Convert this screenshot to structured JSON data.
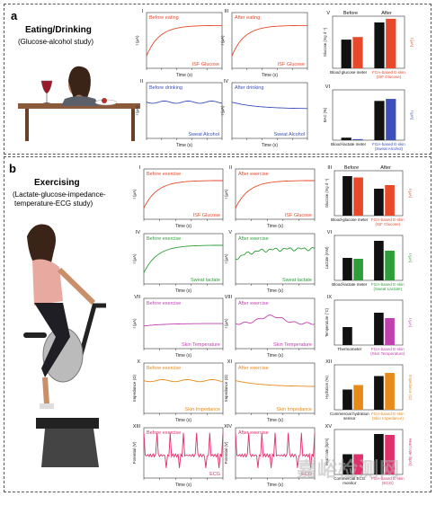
{
  "panel_a": {
    "letter": "a",
    "title": "Eating/Drinking",
    "subtitle": "(Glucose-alcohol study)",
    "plots": [
      {
        "num": "I",
        "note": "Before eating",
        "legend": "ISF Glucose",
        "color": "#e8492b",
        "ylabel": "I (μA)",
        "xlabel": "Time (s)"
      },
      {
        "num": "III",
        "note": "After eating",
        "legend": "ISF Glucose",
        "color": "#e8492b",
        "ylabel": "I (μA)",
        "xlabel": "Time (s)"
      },
      {
        "num": "II",
        "note": "Before drinking",
        "legend": "Sweat Alcohol",
        "color": "#3a4fb8",
        "ylabel": "I (μA)",
        "xlabel": "Time (s)"
      },
      {
        "num": "IV",
        "note": "After drinking",
        "legend": "Sweat Alcohol",
        "color": "#3a4fb8",
        "ylabel": "I (μA)",
        "xlabel": "Time (s)"
      }
    ],
    "bars": [
      {
        "num": "V",
        "sub": "IV",
        "left_label": "Glucose (mg d⁻¹)",
        "right_label": "I (μA)",
        "before": "Before",
        "after": "After",
        "cat1": "Blood glucose meter",
        "cat2": "FGA-based E-skin",
        "cat2b": "(ISF Glucose)",
        "color": "#e8492b",
        "values_black": [
          0.55,
          0.88
        ],
        "values_color": [
          0.6,
          0.95
        ]
      },
      {
        "num": "VI",
        "left_label": "BAC (%)",
        "right_label": "I (μA)",
        "cat1": "Blood-lactate meter",
        "cat2": "FGA-based E-skin",
        "cat2b": "(Sweat Alcohol)",
        "color": "#3a4fb8",
        "values_black": [
          0.05,
          0.78
        ],
        "values_color": [
          0.02,
          0.82
        ]
      }
    ]
  },
  "panel_b": {
    "letter": "b",
    "title": "Exercising",
    "subtitle": "(Lactate-glucose-impedance-",
    "subtitle2": "temperature-ECG study)",
    "rows": [
      {
        "l": "I",
        "r": "II",
        "b": "III",
        "note_l": "Before exercise",
        "note_r": "After exercise",
        "legend": "ISF Glucose",
        "color": "#e8492b",
        "ylabel": "I (μA)",
        "bar_left": "Glucose (mg d⁻¹)",
        "bar_right": "I (μA)",
        "cat1": "Blood-glucose meter",
        "cat2": "FGA-based E-skin",
        "cat2b": "(ISF Glucose)",
        "before": "Before",
        "after": "After",
        "vb": [
          0.88,
          0.6
        ],
        "vc": [
          0.85,
          0.68
        ]
      },
      {
        "l": "IV",
        "r": "V",
        "b": "VI",
        "note_l": "Before exercise",
        "note_r": "After exercise",
        "legend": "Sweat lactate",
        "color": "#2e9e3a",
        "ylabel": "I (μA)",
        "bar_left": "Lactate (mM)",
        "bar_right": "I (μA)",
        "cat1": "Blood-lactate meter",
        "cat2": "FGA-based E-skin",
        "cat2b": "(Sweat Lactate)",
        "vb": [
          0.5,
          0.88
        ],
        "vc": [
          0.48,
          0.66
        ]
      },
      {
        "l": "VII",
        "r": "VIII",
        "b": "IX",
        "note_l": "Before exercise",
        "note_r": "After exercise",
        "legend": "Skin Temperature",
        "color": "#c040b0",
        "ylabel": "I (μA)",
        "bar_left": "Temperature (°C)",
        "bar_right": "I (μA)",
        "cat1": "Thermometer",
        "cat2": "FGA-based E-skin",
        "cat2b": "(Skin Temperature)",
        "vb": [
          0.4,
          0.72
        ],
        "vc": [
          0.0,
          0.6
        ]
      },
      {
        "l": "X",
        "r": "XI",
        "b": "XII",
        "note_l": "Before exercise",
        "note_r": "After exercise",
        "legend": "Skin Impedance",
        "color": "#e88a1a",
        "ylabel": "Impedance (Ω)",
        "bar_left": "Hydration (%)",
        "bar_right": "Impedance (Ω)",
        "cat1": "Commercial hydration",
        "cat1b": "sensor",
        "cat2": "FGA-based E-skin",
        "cat2b": "(Skin Impedance)",
        "vb": [
          0.45,
          0.75
        ],
        "vc": [
          0.55,
          0.82
        ]
      },
      {
        "l": "XIII",
        "r": "XIV",
        "b": "XV",
        "note_l": "Before exercise",
        "note_r": "After exercise",
        "legend": "ECG",
        "color": "#e0306a",
        "ylabel": "Potential (V)",
        "bar_left": "Heart rate (bpm)",
        "bar_right": "Heart rate (bpm)",
        "cat1": "Commercial ECG",
        "cat1b": "monitor",
        "cat2": "FGA-based E-skin",
        "cat2b": "(ECG)",
        "vb": [
          0.45,
          0.9
        ],
        "vc": [
          0.45,
          0.88
        ]
      }
    ],
    "xlabel": "Time (s)"
  },
  "watermark": "嘉峪检测网",
  "colors": {
    "border": "#555555",
    "black_bar": "#111111"
  }
}
